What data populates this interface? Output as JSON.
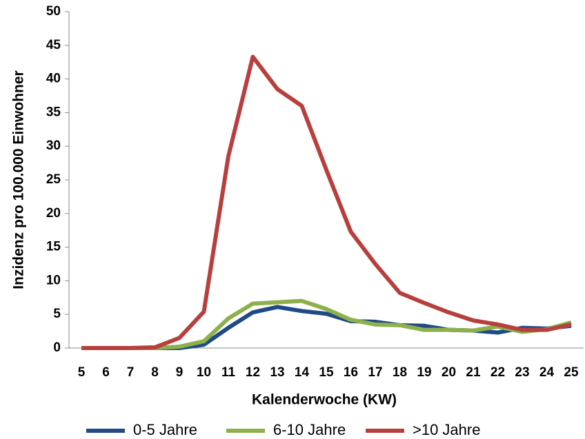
{
  "chart_data": {
    "type": "line",
    "x_label": "Kalenderwoche (KW)",
    "y_label": "Inzidenz pro 100.000 Einwohner",
    "categories": [
      "5",
      "6",
      "7",
      "8",
      "9",
      "10",
      "11",
      "12",
      "13",
      "14",
      "15",
      "16",
      "17",
      "18",
      "19",
      "20",
      "21",
      "22",
      "23",
      "24",
      "25"
    ],
    "series": [
      {
        "name": "0-5 Jahre",
        "color": "#1f4a86",
        "values": [
          0,
          0,
          0,
          0,
          0,
          0.5,
          3,
          5.3,
          6.1,
          5.5,
          5.1,
          4,
          3.9,
          3.4,
          3.3,
          2.7,
          2.6,
          2.3,
          3,
          2.9,
          3.3
        ]
      },
      {
        "name": "6-10 Jahre",
        "color": "#8db04c",
        "values": [
          0,
          0,
          0,
          0,
          0.2,
          1,
          4.4,
          6.6,
          6.8,
          7,
          5.8,
          4.2,
          3.5,
          3.4,
          2.7,
          2.7,
          2.6,
          3.2,
          2.4,
          2.8,
          3.8
        ]
      },
      {
        "name": ">10 Jahre",
        "color": "#b7403e",
        "values": [
          0,
          0,
          0,
          0.1,
          1.5,
          5.4,
          28.5,
          43.3,
          38.5,
          36,
          26.5,
          17.3,
          12.5,
          8.2,
          6.7,
          5.3,
          4.1,
          3.5,
          2.7,
          2.7,
          3.5
        ]
      }
    ],
    "ylim": [
      0,
      50
    ],
    "yticks": [
      0,
      5,
      10,
      15,
      20,
      25,
      30,
      35,
      40,
      45,
      50
    ],
    "grid": false,
    "legend": "bottom"
  }
}
